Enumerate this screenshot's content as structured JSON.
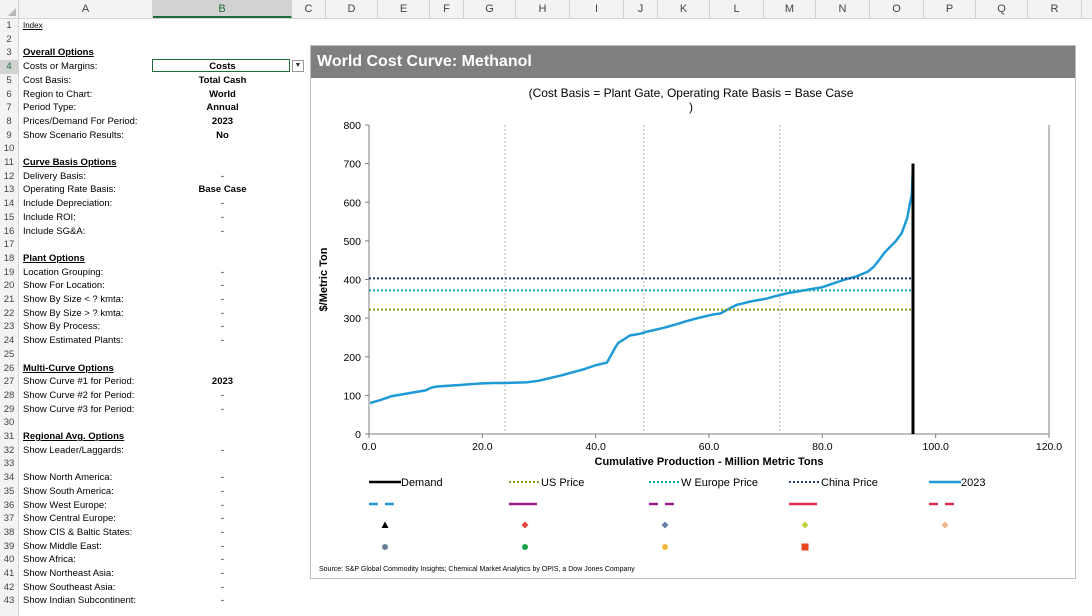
{
  "columns": [
    "A",
    "B",
    "C",
    "D",
    "E",
    "F",
    "G",
    "H",
    "I",
    "J",
    "K",
    "L",
    "M",
    "N",
    "O",
    "P",
    "Q",
    "R"
  ],
  "selected_column": "B",
  "selected_row": "4",
  "rows": [
    {
      "n": "1",
      "a": "Index",
      "b": "",
      "style": "link"
    },
    {
      "n": "2",
      "a": "",
      "b": ""
    },
    {
      "n": "3",
      "a": "Overall Options",
      "b": "",
      "style": "hdr"
    },
    {
      "n": "4",
      "a": "Costs or Margins:",
      "b": "Costs"
    },
    {
      "n": "5",
      "a": "Cost Basis:",
      "b": "Total Cash"
    },
    {
      "n": "6",
      "a": "Region to Chart:",
      "b": "World"
    },
    {
      "n": "7",
      "a": "Period Type:",
      "b": "Annual"
    },
    {
      "n": "8",
      "a": "Prices/Demand For Period:",
      "b": "2023"
    },
    {
      "n": "9",
      "a": "Show Scenario Results:",
      "b": "No"
    },
    {
      "n": "10",
      "a": "",
      "b": ""
    },
    {
      "n": "11",
      "a": "Curve Basis Options",
      "b": "",
      "style": "hdr"
    },
    {
      "n": "12",
      "a": "Delivery Basis:",
      "b": "-",
      "style": "dash"
    },
    {
      "n": "13",
      "a": "Operating Rate Basis:",
      "b": "Base Case"
    },
    {
      "n": "14",
      "a": "Include Depreciation:",
      "b": "-",
      "style": "dash"
    },
    {
      "n": "15",
      "a": "Include ROI:",
      "b": "-",
      "style": "dash"
    },
    {
      "n": "16",
      "a": "Include SG&A:",
      "b": "-",
      "style": "dash"
    },
    {
      "n": "17",
      "a": "",
      "b": ""
    },
    {
      "n": "18",
      "a": "Plant Options",
      "b": "",
      "style": "hdr"
    },
    {
      "n": "19",
      "a": "Location Grouping:",
      "b": "-",
      "style": "dash"
    },
    {
      "n": "20",
      "a": "Show For Location:",
      "b": "-",
      "style": "dash"
    },
    {
      "n": "21",
      "a": "Show By Size < ? kmta:",
      "b": "-",
      "style": "dash"
    },
    {
      "n": "22",
      "a": "Show By Size > ? kmta:",
      "b": "-",
      "style": "dash"
    },
    {
      "n": "23",
      "a": "Show By Process:",
      "b": "-",
      "style": "dash"
    },
    {
      "n": "24",
      "a": "Show Estimated Plants:",
      "b": "-",
      "style": "dash"
    },
    {
      "n": "25",
      "a": "",
      "b": ""
    },
    {
      "n": "26",
      "a": "Multi-Curve Options",
      "b": "",
      "style": "hdr"
    },
    {
      "n": "27",
      "a": "Show Curve #1 for Period:",
      "b": "2023"
    },
    {
      "n": "28",
      "a": "Show Curve #2 for Period:",
      "b": "-",
      "style": "dash"
    },
    {
      "n": "29",
      "a": "Show Curve #3 for Period:",
      "b": "-",
      "style": "dash"
    },
    {
      "n": "30",
      "a": "",
      "b": ""
    },
    {
      "n": "31",
      "a": "Regional Avg. Options",
      "b": "",
      "style": "hdr"
    },
    {
      "n": "32",
      "a": "Show Leader/Laggards:",
      "b": "-",
      "style": "dash"
    },
    {
      "n": "33",
      "a": "",
      "b": ""
    },
    {
      "n": "34",
      "a": "Show North America:",
      "b": "-",
      "style": "dash"
    },
    {
      "n": "35",
      "a": "Show South America:",
      "b": "-",
      "style": "dash"
    },
    {
      "n": "36",
      "a": "Show West Europe:",
      "b": "-",
      "style": "dash"
    },
    {
      "n": "37",
      "a": "Show Central Europe:",
      "b": "-",
      "style": "dash"
    },
    {
      "n": "38",
      "a": "Show CIS & Baltic States:",
      "b": "-",
      "style": "dash"
    },
    {
      "n": "39",
      "a": "Show Middle East:",
      "b": "-",
      "style": "dash"
    },
    {
      "n": "40",
      "a": "Show Africa:",
      "b": "-",
      "style": "dash"
    },
    {
      "n": "41",
      "a": "Show Northeast Asia:",
      "b": "-",
      "style": "dash"
    },
    {
      "n": "42",
      "a": "Show Southeast Asia:",
      "b": "-",
      "style": "dash"
    },
    {
      "n": "43",
      "a": "Show Indian Subcontinent:",
      "b": "-",
      "style": "dash"
    }
  ],
  "chart": {
    "title": "World Cost Curve:  Methanol",
    "subtitle_line1": "(Cost Basis = Plant Gate, Operating Rate Basis = Base Case",
    "subtitle_line2": ")",
    "source": "Source: S&P Global Commodity Insights; Chemical Market Analytics by OPIS, a Dow Jones Company",
    "legend_row1": [
      {
        "label": "Demand",
        "color": "#000000",
        "style": "solid"
      },
      {
        "label": "US Price",
        "color": "#8a9a1b",
        "style": "dotted"
      },
      {
        "label": "W Europe Price",
        "color": "#1aa3b0",
        "style": "dotted"
      },
      {
        "label": "China Price",
        "color": "#1f3a7a",
        "style": "dotted"
      },
      {
        "label": "2023",
        "color": "#1e9bd7",
        "style": "solid"
      }
    ],
    "legend_row2_colors": [
      "#1e9bd7",
      "#9b1b8a",
      "#9b1b8a",
      "#e0314b",
      "#e0314b"
    ],
    "legend_row2_styles": [
      "dashed",
      "solid",
      "dashed",
      "solid",
      "dashed"
    ],
    "legend_markers_row3": [
      {
        "shape": "triangle",
        "color": "#000000"
      },
      {
        "shape": "diamond",
        "color": "#e2483d"
      },
      {
        "shape": "diamond",
        "color": "#6b7fa6"
      },
      {
        "shape": "diamond",
        "color": "#c7d23a"
      },
      {
        "shape": "diamond",
        "color": "#f2b48a"
      }
    ],
    "legend_markers_row4": [
      {
        "shape": "circle",
        "color": "#6b7f9a"
      },
      {
        "shape": "circle",
        "color": "#1aa34a"
      },
      {
        "shape": "circle",
        "color": "#f5b942"
      },
      {
        "shape": "square",
        "color": "#e8471e"
      }
    ]
  },
  "chart_data": {
    "type": "line",
    "title": "World Cost Curve:  Methanol",
    "xlabel": "Cumulative Production - Million Metric Tons",
    "ylabel": "$/Metric Ton",
    "xlim": [
      0,
      120
    ],
    "ylim": [
      0,
      800
    ],
    "x_ticks": [
      "0.0",
      "20.0",
      "40.0",
      "60.0",
      "80.0",
      "100.0",
      "120.0"
    ],
    "y_ticks": [
      "0",
      "100",
      "200",
      "300",
      "400",
      "500",
      "600",
      "700",
      "800"
    ],
    "x_tick_values": [
      0,
      20,
      40,
      60,
      80,
      100,
      120
    ],
    "y_tick_values": [
      0,
      100,
      200,
      300,
      400,
      500,
      600,
      700,
      800
    ],
    "vertical_gridlines_x": [
      24,
      48.5,
      72.5
    ],
    "series": [
      {
        "name": "2023",
        "color": "#1e9bd7",
        "x": [
          0.2,
          2,
          4,
          6,
          8,
          10,
          11,
          12,
          14,
          16,
          18,
          20,
          22,
          24,
          26,
          28,
          30,
          32,
          34,
          36,
          38,
          40,
          42,
          43.5,
          44,
          45,
          46,
          48,
          49,
          50,
          52,
          54,
          56,
          58,
          60,
          61,
          62,
          63,
          64,
          65,
          66,
          67,
          68,
          70,
          72,
          74,
          76,
          78,
          80,
          82,
          84,
          86,
          88,
          89,
          90,
          91,
          92,
          93,
          94,
          95,
          95.5,
          95.8,
          96
        ],
        "y": [
          80,
          88,
          98,
          103,
          108,
          113,
          120,
          123,
          125,
          127,
          129,
          131,
          132,
          132,
          133,
          134,
          138,
          145,
          152,
          160,
          168,
          178,
          185,
          225,
          236,
          245,
          255,
          260,
          265,
          268,
          275,
          283,
          292,
          300,
          307,
          310,
          312,
          320,
          328,
          335,
          338,
          342,
          345,
          350,
          358,
          365,
          370,
          375,
          380,
          390,
          400,
          408,
          420,
          432,
          450,
          470,
          485,
          500,
          520,
          560,
          600,
          620,
          700
        ]
      },
      {
        "name": "Demand",
        "color": "#000000",
        "x": [
          96,
          96
        ],
        "y": [
          0,
          700
        ]
      },
      {
        "name": "US Price",
        "color": "#8a9a1b",
        "value": 322
      },
      {
        "name": "W Europe Price",
        "color": "#1aa3b0",
        "value": 372
      },
      {
        "name": "China Price",
        "color": "#1f3a7a",
        "value": 403
      }
    ]
  }
}
